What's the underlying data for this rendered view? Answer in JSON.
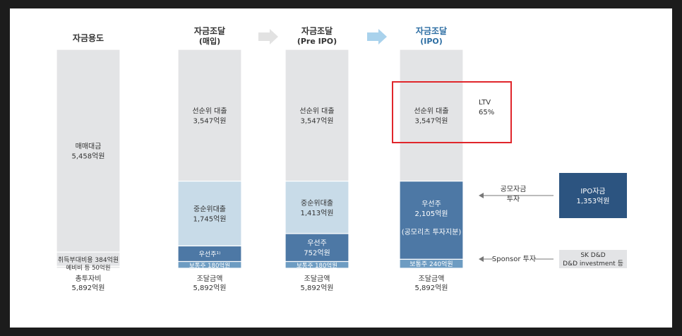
{
  "chart_data": {
    "type": "bar",
    "stacked": true,
    "unit": "억원",
    "colors": {
      "light_gray": "#e3e4e6",
      "light_blue": "#c8dbe8",
      "mid_blue": "#4d78a5",
      "steel_blue": "#6d9cc2",
      "navy": "#2c5480",
      "highlight": "#e0262b",
      "text_dark": "#333333",
      "text_light": "#ffffff"
    },
    "columns": [
      {
        "header": [
          "자금용도"
        ],
        "header_highlight": false,
        "segments": [
          {
            "label": "매매대금",
            "value_text": "5,458억원",
            "value": 5458,
            "color": "light_gray"
          },
          {
            "label": "취득부대비용 384억원",
            "value_text": "",
            "value": 384,
            "color": "light_gray"
          },
          {
            "label": "예비비 등 50억원",
            "value_text": "",
            "value": 50,
            "color": "light_gray"
          }
        ],
        "total_label": "총투자비",
        "total_value": "5,892억원"
      },
      {
        "header": [
          "자금조달",
          "(매입)"
        ],
        "header_highlight": false,
        "segments": [
          {
            "label": "선순위 대출",
            "value_text": "3,547억원",
            "value": 3547,
            "color": "light_gray"
          },
          {
            "label": "중순위대출",
            "value_text": "1,745억원",
            "value": 1745,
            "color": "light_blue"
          },
          {
            "label": "우선주¹⁾",
            "value_text": "420억원",
            "value": 420,
            "color": "mid_blue"
          },
          {
            "label": "보통주 180억원",
            "value_text": "",
            "value": 180,
            "color": "steel_blue"
          }
        ],
        "total_label": "조달금액",
        "total_value": "5,892억원"
      },
      {
        "header": [
          "자금조달",
          "(Pre IPO)"
        ],
        "header_highlight": false,
        "segments": [
          {
            "label": "선순위 대출",
            "value_text": "3,547억원",
            "value": 3547,
            "color": "light_gray"
          },
          {
            "label": "중순위대출",
            "value_text": "1,413억원",
            "value": 1413,
            "color": "light_blue"
          },
          {
            "label": "우선주",
            "value_text": "752억원",
            "value": 752,
            "color": "mid_blue"
          },
          {
            "label": "보통주 180억원",
            "value_text": "",
            "value": 180,
            "color": "steel_blue"
          }
        ],
        "total_label": "조달금액",
        "total_value": "5,892억원"
      },
      {
        "header": [
          "자금조달",
          "(IPO)"
        ],
        "header_highlight": true,
        "segments": [
          {
            "label": "선순위 대출",
            "value_text": "3,547억원",
            "value": 3547,
            "color": "light_gray"
          },
          {
            "label": "우선주",
            "value_text": "2,105억원",
            "value": 2105,
            "color": "mid_blue",
            "note": "(공모리츠 투자지분)"
          },
          {
            "label": "보통주 240억원",
            "value_text": "",
            "value": 240,
            "color": "steel_blue"
          }
        ],
        "total_label": "조달금액",
        "total_value": "5,892억원"
      }
    ],
    "annotations": {
      "ltv_label": "LTV",
      "ltv_value": "65%",
      "ipo_flow_label": [
        "공모자금",
        "투자"
      ],
      "ipo_box": [
        "IPO자금",
        "1,353억원"
      ],
      "sponsor_flow_label": "Sponsor 투자",
      "sponsor_box": [
        "SK D&D",
        "D&D investment 등"
      ]
    }
  }
}
